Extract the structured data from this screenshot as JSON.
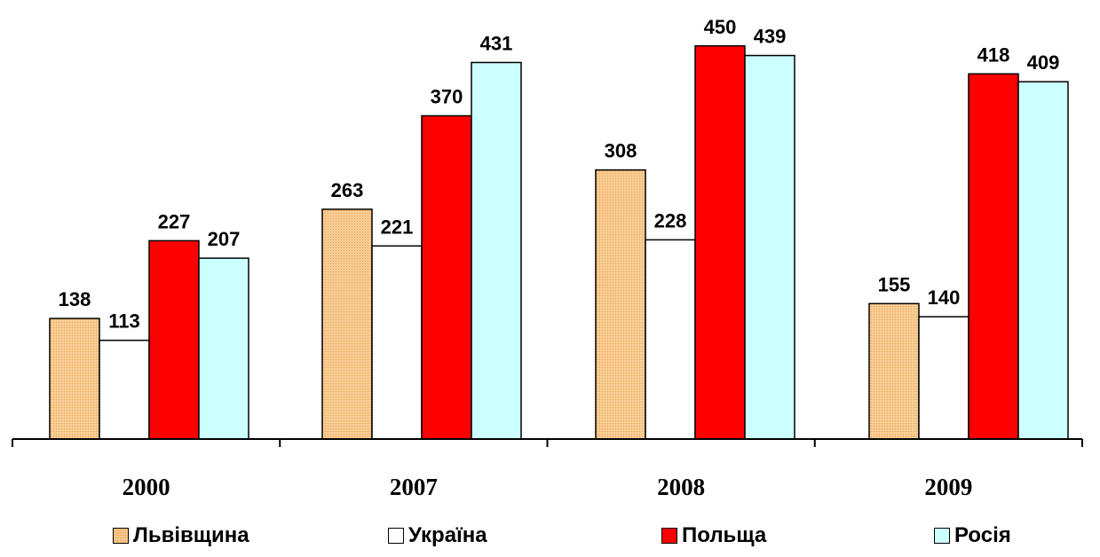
{
  "chart_data": {
    "type": "bar",
    "categories": [
      "2000",
      "2007",
      "2008",
      "2009"
    ],
    "series": [
      {
        "name": "Львівщина",
        "values": [
          138,
          263,
          308,
          155
        ],
        "color": "#f8c98c",
        "pattern": "dotted"
      },
      {
        "name": "Україна",
        "values": [
          113,
          221,
          228,
          140
        ],
        "color": "#ffffff"
      },
      {
        "name": "Польща",
        "values": [
          227,
          370,
          450,
          418
        ],
        "color": "#ff0000"
      },
      {
        "name": "Росія",
        "values": [
          207,
          431,
          439,
          409
        ],
        "color": "#ccffff"
      }
    ],
    "ylim": [
      0,
      450
    ],
    "grid": false,
    "legend": "bottom",
    "data_labels": true
  }
}
